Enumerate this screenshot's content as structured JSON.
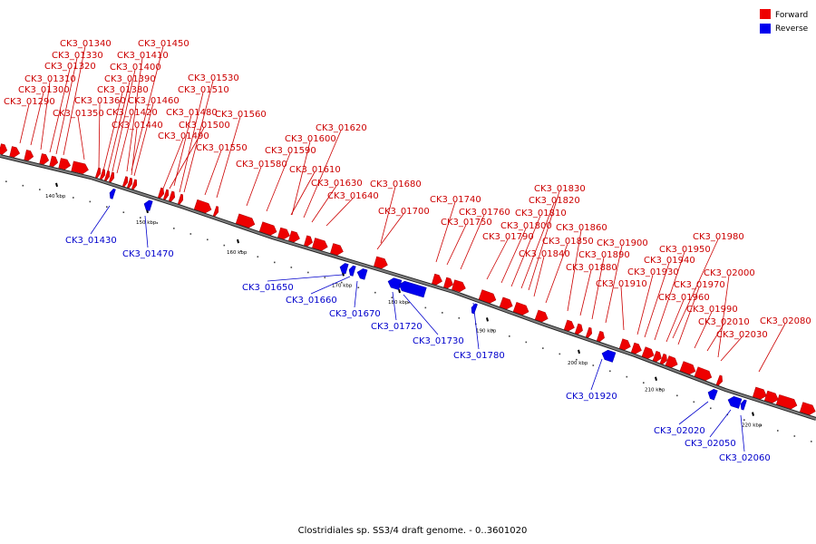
{
  "caption": "Clostridiales sp. SS3/4 draft genome. - 0..3601020",
  "legend": [
    {
      "label": "Forward",
      "color": "#ee0000"
    },
    {
      "label": "Reverse",
      "color": "#0000ee"
    }
  ],
  "colors": {
    "forward": "#ee0000",
    "reverse": "#0000ee",
    "backbone": "#808080",
    "forward_label": "#cc0000",
    "reverse_label": "#0000cc"
  },
  "ticks": [
    "140 kbp",
    "150 kbp",
    "160 kbp",
    "170 kbp",
    "180 kbp",
    "190 kbp",
    "200 kbp",
    "210 kbp",
    "220 kbp"
  ],
  "forward_genes": [
    "CK3_01290",
    "CK3_01300",
    "CK3_01310",
    "CK3_01320",
    "CK3_01330",
    "CK3_01340",
    "CK3_01350",
    "CK3_01360",
    "CK3_01380",
    "CK3_01390",
    "CK3_01400",
    "CK3_01410",
    "CK3_01420",
    "CK3_01440",
    "CK3_01450",
    "CK3_01460",
    "CK3_01480",
    "CK3_01490",
    "CK3_01500",
    "CK3_01510",
    "CK3_01530",
    "CK3_01550",
    "CK3_01560",
    "CK3_01580",
    "CK3_01590",
    "CK3_01600",
    "CK3_01610",
    "CK3_01620",
    "CK3_01630",
    "CK3_01640",
    "CK3_01680",
    "CK3_01700",
    "CK3_01740",
    "CK3_01750",
    "CK3_01760",
    "CK3_01790",
    "CK3_01800",
    "CK3_01810",
    "CK3_01820",
    "CK3_01830",
    "CK3_01840",
    "CK3_01850",
    "CK3_01860",
    "CK3_01880",
    "CK3_01890",
    "CK3_01900",
    "CK3_01910",
    "CK3_01930",
    "CK3_01940",
    "CK3_01950",
    "CK3_01960",
    "CK3_01970",
    "CK3_01980",
    "CK3_01990",
    "CK3_02000",
    "CK3_02010",
    "CK3_02030",
    "CK3_02080"
  ],
  "reverse_genes": [
    "CK3_01430",
    "CK3_01470",
    "CK3_01650",
    "CK3_01660",
    "CK3_01670",
    "CK3_01720",
    "CK3_01730",
    "CK3_01780",
    "CK3_01920",
    "CK3_02020",
    "CK3_02050",
    "CK3_02060"
  ]
}
